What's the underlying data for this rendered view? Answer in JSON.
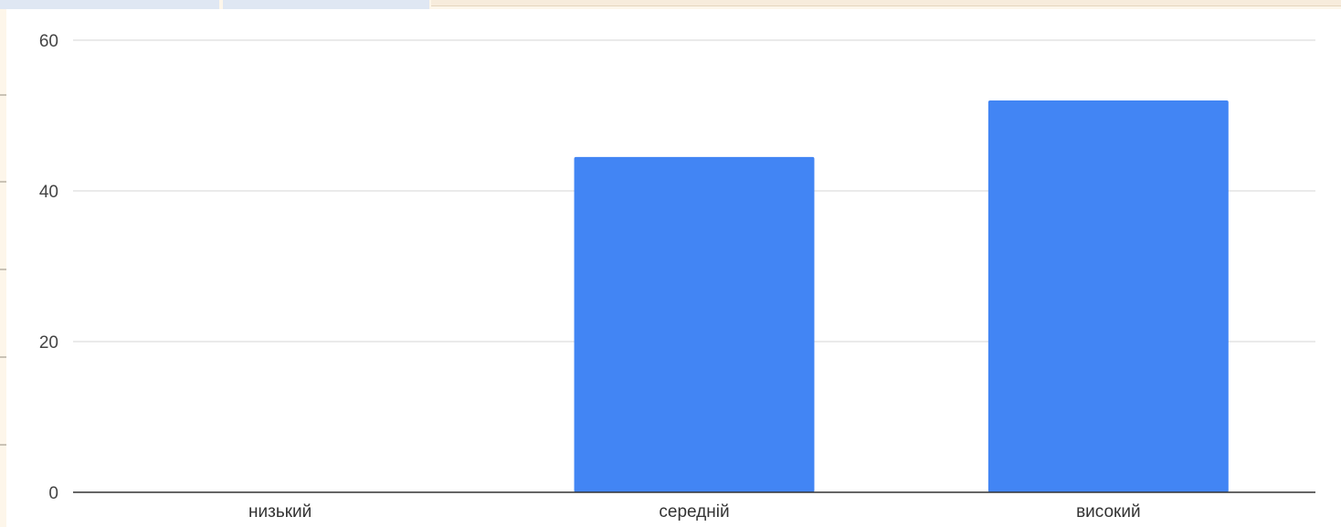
{
  "chart_data": {
    "type": "bar",
    "title": "",
    "xlabel": "",
    "ylabel": "",
    "categories": [
      "низький",
      "середній",
      "високий"
    ],
    "values": [
      0,
      44.5,
      52
    ],
    "ylim": [
      0,
      60
    ],
    "yticks": [
      0,
      20,
      40,
      60
    ],
    "grid": true,
    "legend": "none",
    "colors": {
      "bar": "#4285f4",
      "grid": "#dddddd",
      "axis": "#333333"
    }
  }
}
